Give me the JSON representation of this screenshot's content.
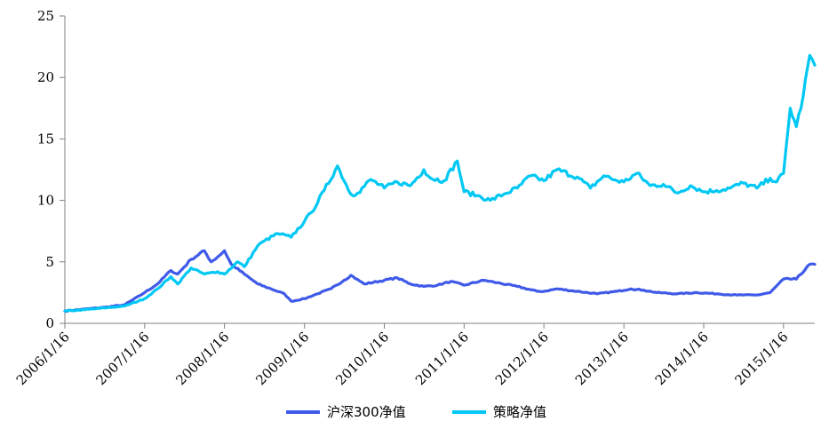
{
  "chart_data": {
    "type": "line",
    "title": "",
    "xlabel": "",
    "ylabel": "",
    "ylim": [
      0,
      25
    ],
    "yticks": [
      0,
      5,
      10,
      15,
      20,
      25
    ],
    "x_tick_labels": [
      "2006/1/16",
      "2007/1/16",
      "2008/1/16",
      "2009/1/16",
      "2010/1/16",
      "2011/1/16",
      "2012/1/16",
      "2013/1/16",
      "2014/1/16",
      "2015/1/16"
    ],
    "x_tick_dates": [
      "2006-01-16",
      "2007-01-16",
      "2008-01-16",
      "2009-01-16",
      "2010-01-16",
      "2011-01-16",
      "2012-01-16",
      "2013-01-16",
      "2014-01-16",
      "2015-01-16"
    ],
    "x_range": [
      "2006-01-16",
      "2015-06-08"
    ],
    "grid": false,
    "legend_position": "bottom-center",
    "series": [
      {
        "name": "沪深300净值",
        "color": "#3f5ae8",
        "x": [
          "2006-01-16",
          "2006-04-16",
          "2006-07-16",
          "2006-10-16",
          "2007-01-16",
          "2007-03-16",
          "2007-05-16",
          "2007-06-16",
          "2007-08-16",
          "2007-10-16",
          "2007-11-16",
          "2007-12-16",
          "2008-01-16",
          "2008-02-16",
          "2008-04-16",
          "2008-06-16",
          "2008-08-16",
          "2008-10-16",
          "2008-11-16",
          "2009-01-16",
          "2009-03-16",
          "2009-05-16",
          "2009-07-16",
          "2009-08-16",
          "2009-10-16",
          "2010-01-16",
          "2010-03-16",
          "2010-05-16",
          "2010-07-16",
          "2010-09-16",
          "2010-11-16",
          "2011-01-16",
          "2011-04-16",
          "2011-06-16",
          "2011-09-16",
          "2011-12-16",
          "2012-01-16",
          "2012-03-16",
          "2012-06-16",
          "2012-09-16",
          "2012-12-16",
          "2013-02-16",
          "2013-04-16",
          "2013-06-16",
          "2013-09-16",
          "2013-12-16",
          "2014-03-16",
          "2014-06-16",
          "2014-09-16",
          "2014-11-16",
          "2015-01-16",
          "2015-03-16",
          "2015-05-16",
          "2015-06-08"
        ],
        "y": [
          1.0,
          1.15,
          1.3,
          1.5,
          2.5,
          3.2,
          4.3,
          4.0,
          5.2,
          5.9,
          5.0,
          5.4,
          5.9,
          4.8,
          4.0,
          3.2,
          2.8,
          2.4,
          1.8,
          2.0,
          2.4,
          2.8,
          3.5,
          3.9,
          3.2,
          3.5,
          3.7,
          3.2,
          3.0,
          3.1,
          3.4,
          3.1,
          3.5,
          3.3,
          3.0,
          2.6,
          2.6,
          2.8,
          2.6,
          2.4,
          2.6,
          2.8,
          2.7,
          2.5,
          2.4,
          2.5,
          2.4,
          2.3,
          2.3,
          2.5,
          3.6,
          3.6,
          4.8,
          4.8
        ]
      },
      {
        "name": "策略净值",
        "color": "#00c8f5",
        "x": [
          "2006-01-16",
          "2006-04-16",
          "2006-07-16",
          "2006-10-16",
          "2007-01-16",
          "2007-03-16",
          "2007-05-16",
          "2007-06-16",
          "2007-08-16",
          "2007-10-16",
          "2007-12-16",
          "2008-01-16",
          "2008-03-16",
          "2008-04-16",
          "2008-06-16",
          "2008-07-16",
          "2008-09-16",
          "2008-11-16",
          "2009-01-16",
          "2009-02-16",
          "2009-04-16",
          "2009-06-16",
          "2009-08-16",
          "2009-09-16",
          "2009-11-16",
          "2010-01-16",
          "2010-03-16",
          "2010-05-16",
          "2010-07-16",
          "2010-08-16",
          "2010-10-16",
          "2010-12-16",
          "2011-01-16",
          "2011-03-16",
          "2011-05-16",
          "2011-07-16",
          "2011-09-16",
          "2011-11-16",
          "2012-01-16",
          "2012-03-16",
          "2012-06-16",
          "2012-08-16",
          "2012-10-16",
          "2012-12-16",
          "2013-01-16",
          "2013-03-16",
          "2013-05-16",
          "2013-07-16",
          "2013-09-16",
          "2013-11-16",
          "2014-01-16",
          "2014-03-16",
          "2014-05-16",
          "2014-07-16",
          "2014-09-16",
          "2014-11-16",
          "2014-12-16",
          "2015-01-16",
          "2015-02-16",
          "2015-03-16",
          "2015-04-16",
          "2015-05-16",
          "2015-06-08"
        ],
        "y": [
          1.0,
          1.1,
          1.25,
          1.4,
          2.0,
          2.8,
          3.8,
          3.2,
          4.5,
          4.0,
          4.2,
          4.0,
          5.0,
          4.6,
          6.3,
          6.7,
          7.3,
          7.0,
          8.3,
          9.0,
          10.8,
          12.8,
          10.5,
          10.6,
          11.7,
          11.0,
          11.5,
          11.2,
          12.5,
          11.8,
          11.6,
          13.2,
          10.7,
          10.4,
          10.0,
          10.5,
          11.0,
          12.0,
          11.6,
          12.5,
          11.9,
          11.0,
          12.0,
          11.6,
          11.5,
          12.2,
          11.2,
          11.3,
          10.6,
          11.2,
          10.7,
          10.8,
          11.0,
          11.4,
          11.0,
          11.8,
          11.5,
          12.2,
          17.5,
          16.0,
          18.5,
          21.8,
          21.0
        ]
      }
    ]
  }
}
